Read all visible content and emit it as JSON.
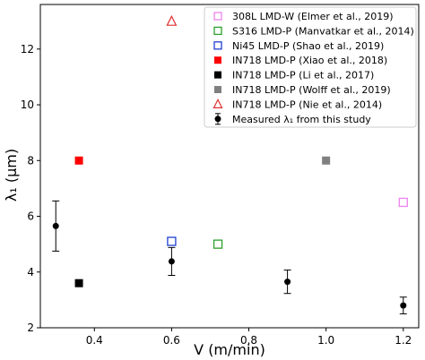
{
  "chart_data": {
    "type": "scatter",
    "title": "",
    "xlabel": "V (m/min)",
    "ylabel": "λ₁ (μm)",
    "xlim": [
      0.26,
      1.24
    ],
    "ylim": [
      2,
      13.6
    ],
    "xticks": [
      "0.4",
      "0.6",
      "0.8",
      "1.0",
      "1.2"
    ],
    "yticks": [
      "2",
      "4",
      "6",
      "8",
      "10",
      "12"
    ],
    "xtick_values": [
      0.4,
      0.6,
      0.8,
      1.0,
      1.2
    ],
    "ytick_values": [
      2,
      4,
      6,
      8,
      10,
      12
    ],
    "grid": false,
    "legend_position": "top-right",
    "series": [
      {
        "name": "308L LMD-W (Elmer et al., 2019)",
        "marker": "square-open",
        "color": "#ee82ee",
        "points": [
          {
            "x": 1.2,
            "y": 6.5
          }
        ]
      },
      {
        "name": "S316 LMD-P (Manvatkar et al., 2014)",
        "marker": "square-open",
        "color": "#2ca02c",
        "points": [
          {
            "x": 0.72,
            "y": 5.0
          }
        ]
      },
      {
        "name": "Ni45 LMD-P (Shao et al., 2019)",
        "marker": "square-open",
        "color": "#1f3fd0",
        "points": [
          {
            "x": 0.6,
            "y": 5.1
          }
        ]
      },
      {
        "name": "IN718 LMD-P (Xiao et al., 2018)",
        "marker": "square-filled",
        "color": "#ff0000",
        "points": [
          {
            "x": 0.36,
            "y": 8.0
          }
        ]
      },
      {
        "name": "IN718 LMD-P (Li et al., 2017)",
        "marker": "square-filled",
        "color": "#000000",
        "points": [
          {
            "x": 0.36,
            "y": 3.6
          }
        ]
      },
      {
        "name": "IN718 LMD-P (Wolff et al., 2019)",
        "marker": "square-filled",
        "color": "#808080",
        "points": [
          {
            "x": 1.0,
            "y": 8.0
          }
        ]
      },
      {
        "name": "IN718 LMD-P (Nie et al., 2014)",
        "marker": "triangle-open",
        "color": "#e03030",
        "points": [
          {
            "x": 0.6,
            "y": 13.0
          }
        ]
      },
      {
        "name": "Measured λ₁ from this study",
        "marker": "circle-errorbar",
        "color": "#000000",
        "points": [
          {
            "x": 0.3,
            "y": 5.65,
            "yerr": 0.9
          },
          {
            "x": 0.6,
            "y": 4.38,
            "yerr": 0.5
          },
          {
            "x": 0.9,
            "y": 3.65,
            "yerr": 0.42
          },
          {
            "x": 1.2,
            "y": 2.8,
            "yerr": 0.3
          }
        ]
      }
    ]
  }
}
